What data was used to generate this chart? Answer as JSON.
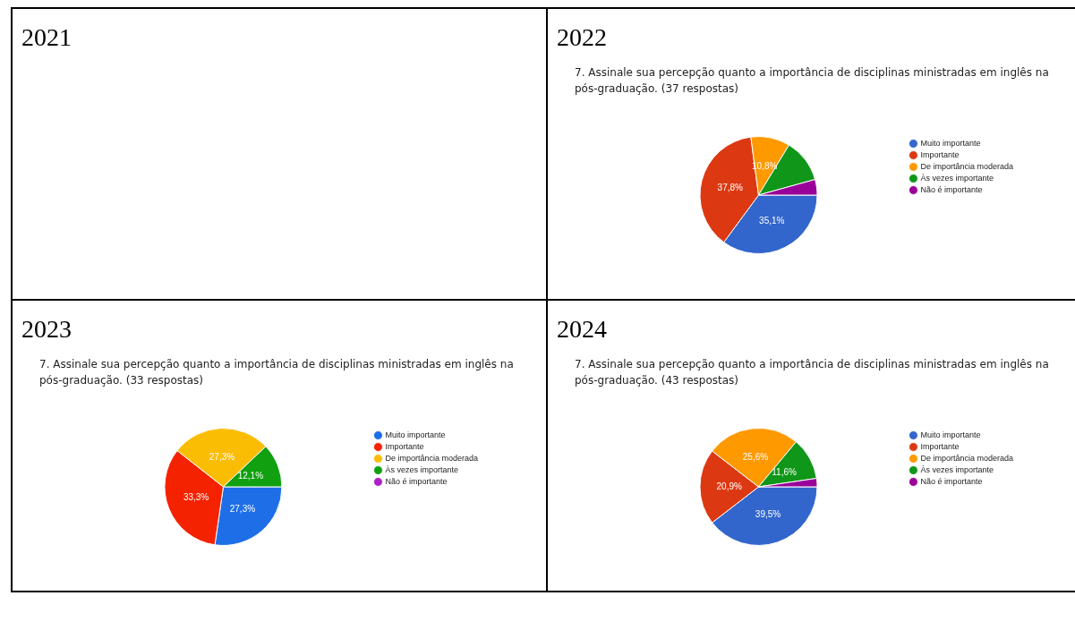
{
  "chart_data": [
    {
      "type": "other",
      "title": "2021"
    },
    {
      "type": "pie",
      "title": "2022",
      "subtitle": "7.  Assinale sua percepção quanto a importância de disciplinas ministradas em inglês na pós-graduação. (37 respostas)",
      "categories": [
        "Muito importante",
        "Importante",
        "De importância moderada",
        "Às vezes importante",
        "Não é importante"
      ],
      "values": [
        35.1,
        37.8,
        10.8,
        12,
        4.3
      ],
      "value_labels": [
        "35,1%",
        "37,8%",
        "10,8%",
        null,
        null
      ],
      "colors": [
        "#3366cc",
        "#dc3912",
        "#ff9900",
        "#109618",
        "#990099"
      ],
      "legend": "right"
    },
    {
      "type": "pie",
      "title": "2023",
      "subtitle": "7.  Assinale sua percepção quanto a importância de disciplinas ministradas em inglês na pós-graduação. (33 respostas)",
      "categories": [
        "Muito importante",
        "Importante",
        "De importância moderada",
        "Às vezes importante",
        "Não é importante"
      ],
      "values": [
        27.3,
        33.3,
        27.3,
        12.1,
        0
      ],
      "value_labels": [
        "27,3%",
        "33,3%",
        "27,3%",
        "12,1%",
        null
      ],
      "colors": [
        "#1e6ee8",
        "#f52200",
        "#fbbc04",
        "#10a010",
        "#ab20c4"
      ],
      "legend": "right"
    },
    {
      "type": "pie",
      "title": "2024",
      "subtitle": "7.  Assinale sua percepção quanto a importância de disciplinas ministradas em inglês na pós-graduação. (43 respostas)",
      "categories": [
        "Muito importante",
        "Importante",
        "De importância moderada",
        "Às vezes importante",
        "Não é importante"
      ],
      "values": [
        39.5,
        20.9,
        25.6,
        11.6,
        2.3
      ],
      "value_labels": [
        "39,5%",
        "20,9%",
        "25,6%",
        "11,6%",
        null
      ],
      "colors": [
        "#3366cc",
        "#dc3912",
        "#ff9900",
        "#109618",
        "#990099"
      ],
      "legend": "right"
    }
  ]
}
